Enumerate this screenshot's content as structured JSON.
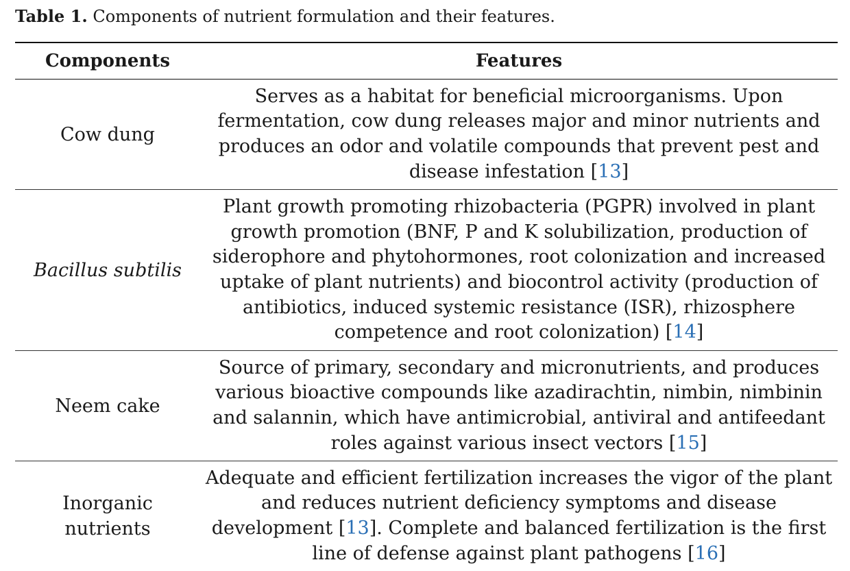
{
  "caption": {
    "label": "Table 1.",
    "text": " Components of nutrient formulation and their features."
  },
  "table": {
    "headers": {
      "components": "Components",
      "features": "Features"
    },
    "rows": [
      {
        "component": "Cow dung",
        "lines": [
          [
            "Serves as a habitat for beneficial microorganisms. Upon"
          ],
          [
            "fermentation, cow dung releases major and minor nutrients and"
          ],
          [
            "produces an odor and volatile compounds that prevent pest and"
          ],
          [
            "disease infestation [",
            "13",
            "]"
          ]
        ]
      },
      {
        "component": "Bacillus subtilis",
        "lines": [
          [
            "Plant growth promoting rhizobacteria (PGPR) involved in plant"
          ],
          [
            "growth promotion (BNF, P and K solubilization, production of"
          ],
          [
            "siderophore and phytohormones, root colonization and increased"
          ],
          [
            "uptake of plant nutrients) and biocontrol activity (production of"
          ],
          [
            "antibiotics, induced systemic resistance (ISR), rhizosphere"
          ],
          [
            "competence and root colonization) [",
            "14",
            "]"
          ]
        ]
      },
      {
        "component": "Neem cake",
        "lines": [
          [
            "Source of primary, secondary and micronutrients, and produces"
          ],
          [
            "various bioactive compounds like azadirachtin, nimbin, nimbinin"
          ],
          [
            "and salannin, which have antimicrobial, antiviral and antifeedant"
          ],
          [
            "roles against various insect vectors [",
            "15",
            "]"
          ]
        ]
      },
      {
        "component_lines": [
          "Inorganic",
          "nutrients"
        ],
        "lines": [
          [
            "Adequate and efficient fertilization increases the vigor of the plant"
          ],
          [
            "and reduces nutrient deficiency symptoms and disease"
          ],
          [
            "development [",
            "13",
            "]. Complete and balanced fertilization is the first"
          ],
          [
            "line of defense against plant pathogens [",
            "16",
            "]"
          ]
        ]
      }
    ]
  }
}
